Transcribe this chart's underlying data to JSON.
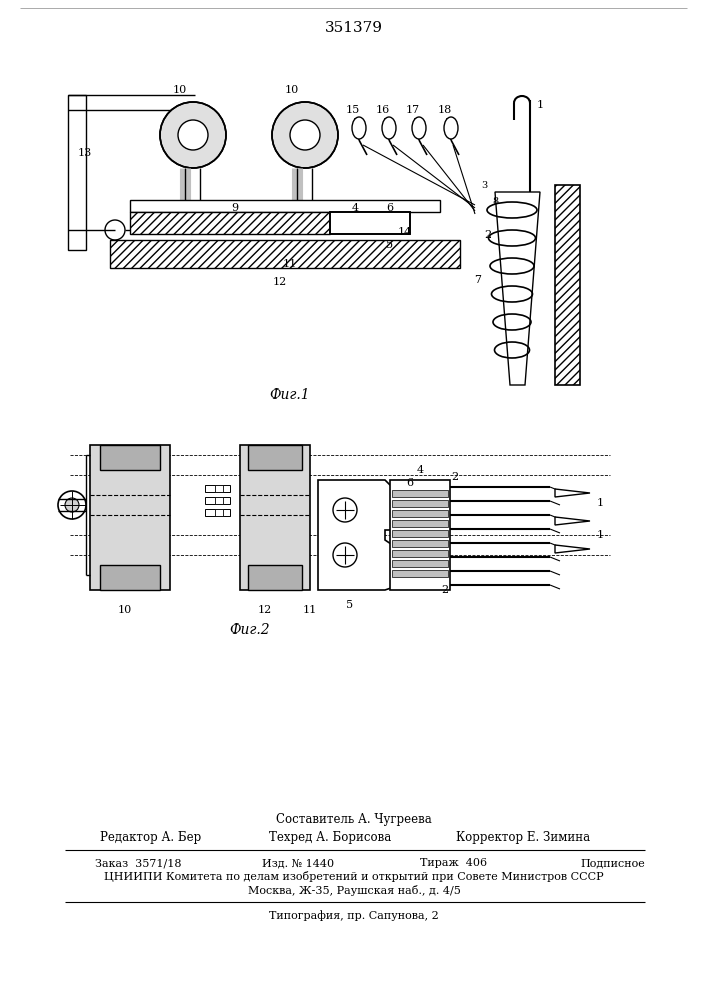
{
  "title": "351379",
  "fig1_caption": "Фиг.1",
  "fig2_caption": "Фиг.2",
  "footer_composer": "Составитель А. Чугреева",
  "footer_editor": "Редактор А. Бер",
  "footer_tech": "Техред А. Борисова",
  "footer_corrector": "Корректор Е. Зимина",
  "footer_order": "Заказ  3571/18",
  "footer_pub": "Изд. № 1440",
  "footer_print": "Тираж  406",
  "footer_sign": "Подписное",
  "footer_org": "ЦНИИПИ Комитета по делам изобретений и открытий при Совете Министров СССР",
  "footer_addr": "Москва, Ж-35, Раушская наб., д. 4/5",
  "footer_typo": "Типография, пр. Сапунова, 2",
  "bg_color": "#ffffff",
  "line_color": "#000000"
}
